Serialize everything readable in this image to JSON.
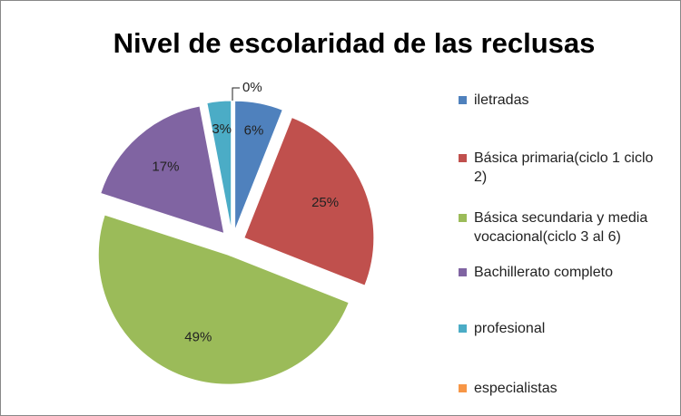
{
  "chart_data": {
    "type": "pie",
    "title": "Nivel de escolaridad de las reclusas",
    "categories": [
      "iletradas",
      "Básica primaria(ciclo 1 ciclo 2)",
      "Básica secundaria y media vocacional(ciclo 3 al 6)",
      "Bachillerato completo",
      "profesional",
      "especialistas"
    ],
    "values": [
      6,
      25,
      49,
      17,
      3,
      0
    ],
    "value_labels": [
      "6%",
      "25%",
      "49%",
      "17%",
      "3%",
      "0%"
    ],
    "colors": [
      "#4f81bd",
      "#c0504d",
      "#9bbb59",
      "#8064a2",
      "#4bacc6",
      "#f79646"
    ],
    "legend": "right"
  }
}
